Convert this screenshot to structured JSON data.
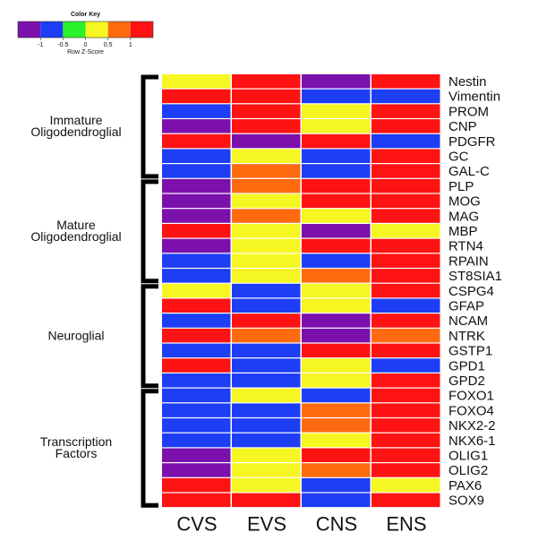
{
  "chart_data": {
    "type": "heatmap",
    "title": "",
    "columns": [
      "CVS",
      "EVS",
      "CNS",
      "ENS"
    ],
    "rows": [
      "Nestin",
      "Vimentin",
      "PROM",
      "CNP",
      "PDGFR",
      "GC",
      "GAL-C",
      "PLP",
      "MOG",
      "MAG",
      "MBP",
      "RTN4",
      "RPAIN",
      "ST8SIA1",
      "CSPG4",
      "GFAP",
      "NCAM",
      "NTRK",
      "GSTP1",
      "GPD1",
      "GPD2",
      "FOXO1",
      "FOXO4",
      "NKX2-2",
      "NKX6-1",
      "OLIG1",
      "OLIG2",
      "PAX6",
      "SOX9"
    ],
    "values": [
      [
        0,
        1,
        -1.5,
        1
      ],
      [
        1,
        1,
        -1,
        -1
      ],
      [
        -1,
        1,
        0,
        1.5
      ],
      [
        -1.5,
        1,
        0,
        1.5
      ],
      [
        1,
        -1.5,
        1,
        -1
      ],
      [
        -1,
        0,
        -1,
        1.5
      ],
      [
        -1,
        0.5,
        -1,
        1.5
      ],
      [
        -1.5,
        0.5,
        1,
        1
      ],
      [
        -1.5,
        0,
        1,
        1
      ],
      [
        -1.5,
        0.5,
        0,
        1.5
      ],
      [
        1.5,
        0,
        -1.5,
        0
      ],
      [
        -1.5,
        0,
        1,
        1.5
      ],
      [
        -1,
        0,
        -1,
        1.5
      ],
      [
        -1,
        0,
        0.5,
        1.5
      ],
      [
        0,
        -1,
        0,
        1.5
      ],
      [
        1.5,
        -1,
        0,
        -1
      ],
      [
        -1,
        1,
        -1.5,
        1
      ],
      [
        1.5,
        0.5,
        -1.5,
        0.5
      ],
      [
        -1,
        -1,
        1,
        1
      ],
      [
        1.5,
        -1,
        0,
        -1
      ],
      [
        -1,
        -1,
        0,
        1.5
      ],
      [
        -1,
        0,
        -1,
        1.5
      ],
      [
        -1,
        -1,
        0.5,
        1.5
      ],
      [
        -1,
        -1,
        0.5,
        1.5
      ],
      [
        -1,
        -1,
        0,
        1.5
      ],
      [
        -1.5,
        0,
        1,
        1.5
      ],
      [
        -1.5,
        0,
        0.5,
        1.5
      ],
      [
        1.5,
        0,
        -1,
        0
      ],
      [
        1,
        1,
        -1,
        1
      ]
    ],
    "groups": [
      {
        "label_lines": [
          "Immature",
          "Oligodendroglial"
        ],
        "start": 0,
        "end": 6
      },
      {
        "label_lines": [
          "Mature",
          "Oligodendroglial"
        ],
        "start": 7,
        "end": 13
      },
      {
        "label_lines": [
          "Neuroglial"
        ],
        "start": 14,
        "end": 20
      },
      {
        "label_lines": [
          "Transcription",
          "Factors"
        ],
        "start": 21,
        "end": 28
      }
    ],
    "color_key": {
      "title": "Color Key",
      "subtitle": "Row Z-Score",
      "ticks": [
        "-1",
        "-0.5",
        "0",
        "0.5",
        "1"
      ],
      "tick_values": [
        -1,
        -0.5,
        0,
        0.5,
        1
      ],
      "range": [
        -1.5,
        1.5
      ],
      "colors": [
        "#7b10ad",
        "#1d3ef5",
        "#2af22a",
        "#f6f622",
        "#ff6a10",
        "#ff1212"
      ]
    }
  }
}
